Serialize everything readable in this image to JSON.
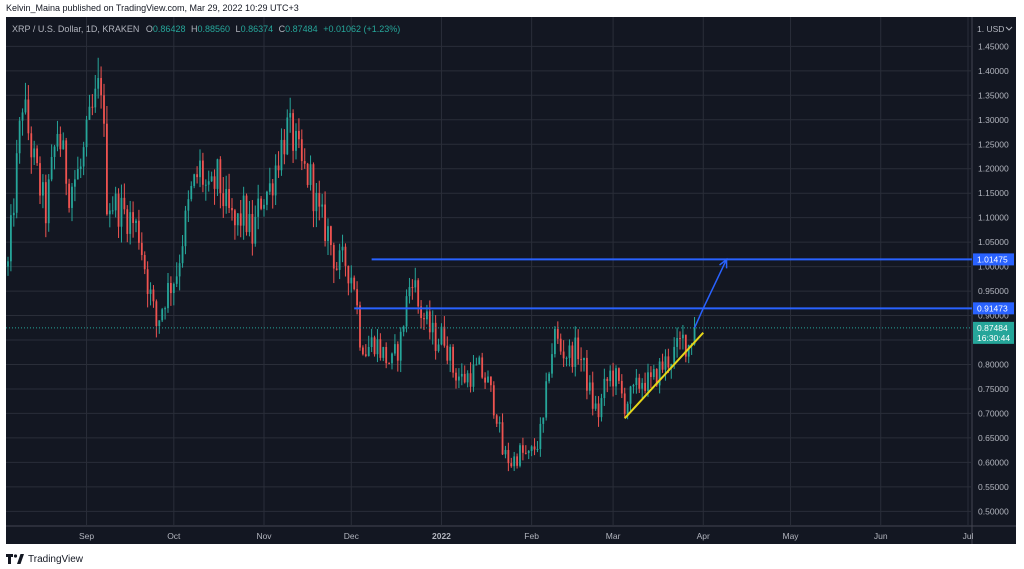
{
  "header": {
    "published": "Kelvin_Maina published on TradingView.com, Mar 29, 2022 10:29 UTC+3"
  },
  "footer": {
    "brand": "TradingView"
  },
  "chart_data": {
    "type": "candlestick",
    "symbol_line": "XRP / U.S. Dollar, 1D, KRAKEN",
    "ohlc": {
      "O": {
        "label": "O",
        "value": "0.86428"
      },
      "H": {
        "label": "H",
        "value": "0.88560"
      },
      "L": {
        "label": "L",
        "value": "0.86374"
      },
      "C": {
        "label": "C",
        "value": "0.87484"
      },
      "change": "+0.01062 (+1.23%)"
    },
    "currency_label": "1. USD",
    "ylim": [
      0.47,
      1.51
    ],
    "y_ticks": [
      "1.45000",
      "1.40000",
      "1.35000",
      "1.30000",
      "1.25000",
      "1.20000",
      "1.15000",
      "1.10000",
      "1.05000",
      "1.00000",
      "0.95000",
      "0.90000",
      "0.85000",
      "0.80000",
      "0.75000",
      "0.70000",
      "0.65000",
      "0.60000",
      "0.55000",
      "0.50000"
    ],
    "x_ticks": [
      {
        "label": "Sep",
        "bold": false
      },
      {
        "label": "Oct",
        "bold": false
      },
      {
        "label": "Nov",
        "bold": false
      },
      {
        "label": "Dec",
        "bold": false
      },
      {
        "label": "2022",
        "bold": true
      },
      {
        "label": "Feb",
        "bold": false
      },
      {
        "label": "Mar",
        "bold": false
      },
      {
        "label": "Apr",
        "bold": false
      },
      {
        "label": "May",
        "bold": false
      },
      {
        "label": "Jun",
        "bold": false
      },
      {
        "label": "Jul",
        "bold": false
      }
    ],
    "price_labels": {
      "upper_level": "1.01475",
      "lower_level": "0.91473",
      "last_price": "0.87484",
      "countdown": "16:30:44"
    },
    "levels": [
      {
        "value": 1.01475,
        "start": "2021-12-08"
      },
      {
        "value": 0.91473,
        "start": "2021-12-02"
      }
    ],
    "trendline": {
      "start": [
        "2022-03-05",
        0.69
      ],
      "end": [
        "2022-04-01",
        0.865
      ]
    },
    "projection": [
      [
        "2022-03-29",
        0.875
      ],
      [
        "2022-04-01",
        0.91473
      ],
      [
        "2022-04-09",
        1.01475
      ]
    ],
    "last_close": 0.87484,
    "colors": {
      "up": "#26a69a",
      "down": "#ef5350",
      "level": "#2962ff",
      "trend": "#e6d619",
      "price_bg": "#26a69a",
      "grid": "#2a2e39",
      "text": "#b2b5be"
    },
    "closes": [
      [
        "2021-08-05",
        1.0
      ],
      [
        "2021-08-10",
        1.34
      ],
      [
        "2021-08-14",
        1.21
      ],
      [
        "2021-08-18",
        1.11
      ],
      [
        "2021-08-22",
        1.28
      ],
      [
        "2021-08-26",
        1.16
      ],
      [
        "2021-08-30",
        1.2
      ],
      [
        "2021-09-02",
        1.29
      ],
      [
        "2021-09-06",
        1.38
      ],
      [
        "2021-09-08",
        1.14
      ],
      [
        "2021-09-12",
        1.12
      ],
      [
        "2021-09-16",
        1.1
      ],
      [
        "2021-09-19",
        1.07
      ],
      [
        "2021-09-22",
        0.97
      ],
      [
        "2021-09-25",
        0.88
      ],
      [
        "2021-09-28",
        0.94
      ],
      [
        "2021-10-02",
        0.99
      ],
      [
        "2021-10-04",
        1.06
      ],
      [
        "2021-10-07",
        1.15
      ],
      [
        "2021-10-10",
        1.2
      ],
      [
        "2021-10-13",
        1.14
      ],
      [
        "2021-10-16",
        1.18
      ],
      [
        "2021-10-19",
        1.12
      ],
      [
        "2021-10-22",
        1.08
      ],
      [
        "2021-10-25",
        1.11
      ],
      [
        "2021-10-28",
        1.06
      ],
      [
        "2021-10-31",
        1.14
      ],
      [
        "2021-11-03",
        1.16
      ],
      [
        "2021-11-06",
        1.23
      ],
      [
        "2021-11-09",
        1.28
      ],
      [
        "2021-11-11",
        1.26
      ],
      [
        "2021-11-14",
        1.2
      ],
      [
        "2021-11-17",
        1.18
      ],
      [
        "2021-11-20",
        1.1
      ],
      [
        "2021-11-23",
        1.07
      ],
      [
        "2021-11-26",
        1.0
      ],
      [
        "2021-11-29",
        1.01
      ],
      [
        "2021-12-02",
        0.97
      ],
      [
        "2021-12-04",
        0.86
      ],
      [
        "2021-12-06",
        0.83
      ],
      [
        "2021-12-09",
        0.85
      ],
      [
        "2021-12-12",
        0.82
      ],
      [
        "2021-12-15",
        0.8
      ],
      [
        "2021-12-18",
        0.85
      ],
      [
        "2021-12-20",
        0.93
      ],
      [
        "2021-12-22",
        0.99
      ],
      [
        "2021-12-24",
        0.92
      ],
      [
        "2021-12-27",
        0.88
      ],
      [
        "2021-12-30",
        0.85
      ],
      [
        "2022-01-02",
        0.86
      ],
      [
        "2022-01-05",
        0.79
      ],
      [
        "2022-01-08",
        0.77
      ],
      [
        "2022-01-11",
        0.78
      ],
      [
        "2022-01-14",
        0.79
      ],
      [
        "2022-01-17",
        0.76
      ],
      [
        "2022-01-20",
        0.7
      ],
      [
        "2022-01-22",
        0.62
      ],
      [
        "2022-01-25",
        0.6
      ],
      [
        "2022-01-28",
        0.62
      ],
      [
        "2022-01-31",
        0.61
      ],
      [
        "2022-02-03",
        0.64
      ],
      [
        "2022-02-05",
        0.68
      ],
      [
        "2022-02-07",
        0.8
      ],
      [
        "2022-02-09",
        0.86
      ],
      [
        "2022-02-11",
        0.83
      ],
      [
        "2022-02-14",
        0.82
      ],
      [
        "2022-02-17",
        0.83
      ],
      [
        "2022-02-19",
        0.79
      ],
      [
        "2022-02-22",
        0.72
      ],
      [
        "2022-02-24",
        0.7
      ],
      [
        "2022-02-26",
        0.75
      ],
      [
        "2022-02-28",
        0.78
      ],
      [
        "2022-03-02",
        0.77
      ],
      [
        "2022-03-05",
        0.72
      ],
      [
        "2022-03-08",
        0.74
      ],
      [
        "2022-03-11",
        0.77
      ],
      [
        "2022-03-14",
        0.76
      ],
      [
        "2022-03-17",
        0.79
      ],
      [
        "2022-03-20",
        0.81
      ],
      [
        "2022-03-23",
        0.83
      ],
      [
        "2022-03-25",
        0.85
      ],
      [
        "2022-03-27",
        0.84
      ],
      [
        "2022-03-29",
        0.875
      ]
    ]
  }
}
